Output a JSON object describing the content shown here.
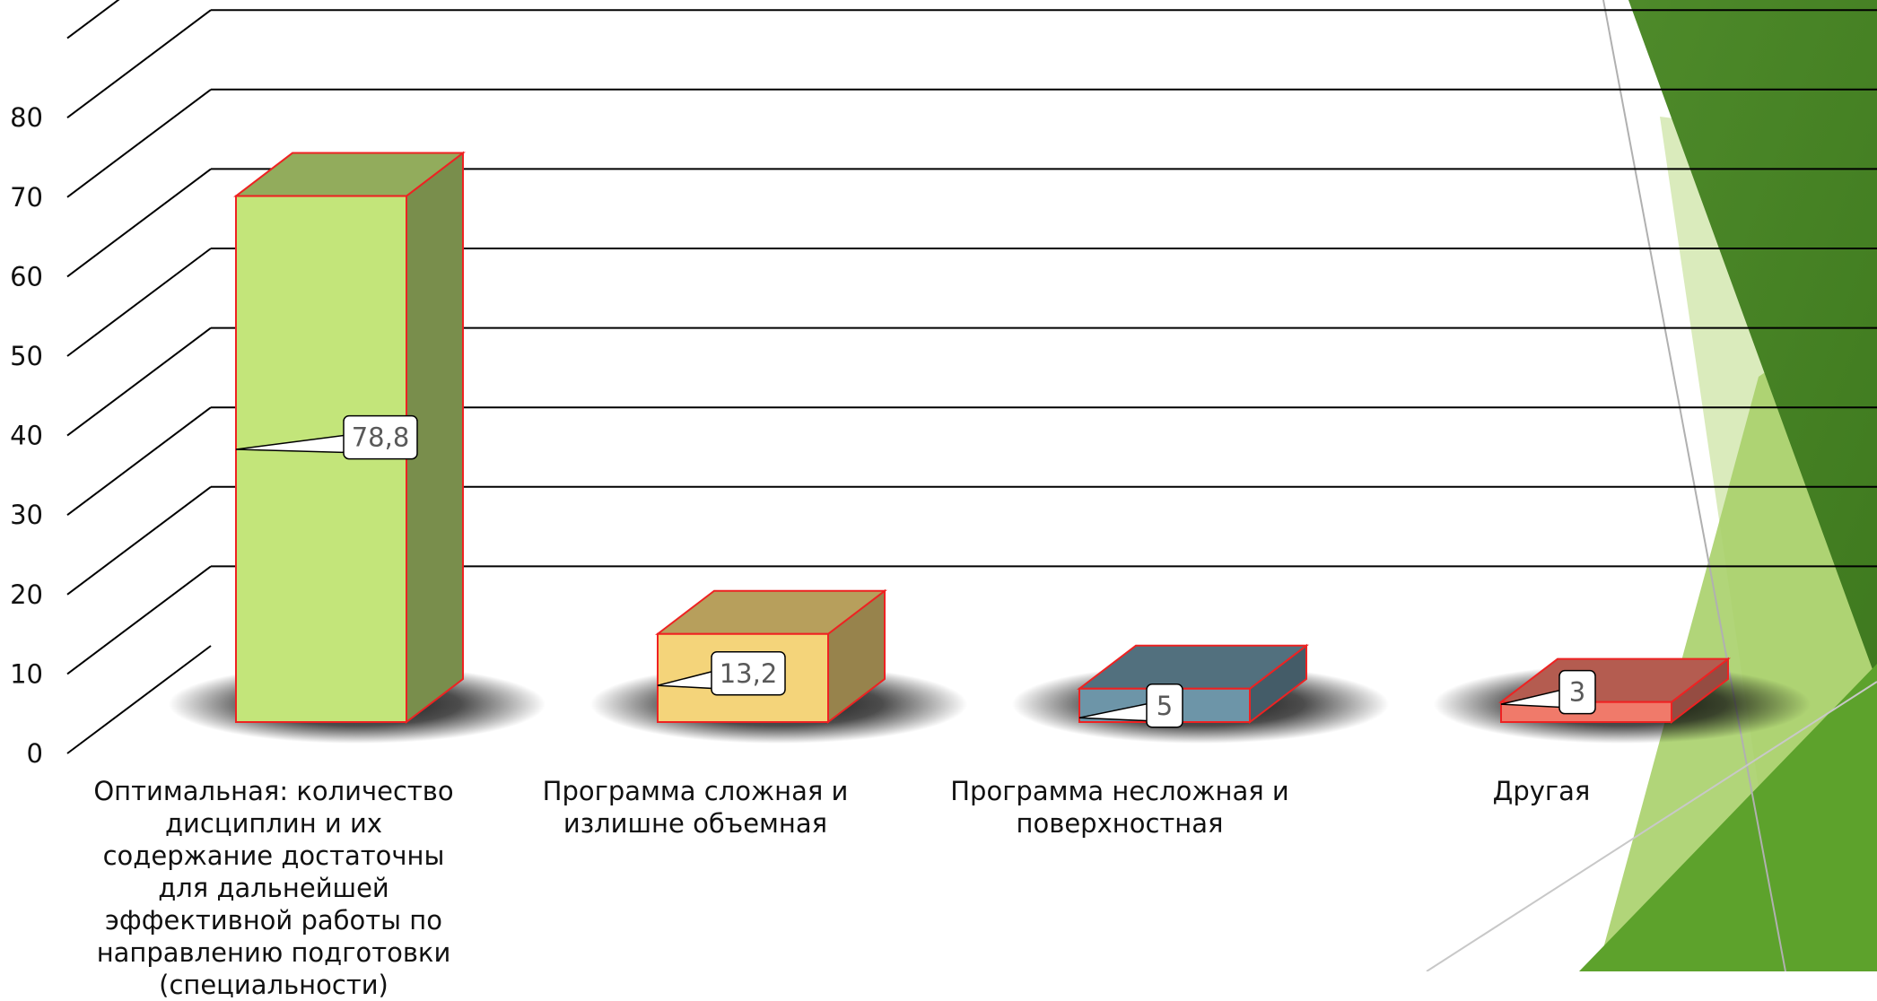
{
  "chart_data": {
    "type": "bar",
    "categories": [
      "Оптимальная: количество дисциплин и их содержание достаточны для дальнейшей эффективной работы по направлению подготовки (специальности)",
      "Программа сложная и излишне объемная",
      "Программа несложная и поверхностная",
      "Другая"
    ],
    "values": [
      78.8,
      13.2,
      5,
      3
    ],
    "data_labels": [
      "78,8",
      "13,2",
      "5",
      "3"
    ],
    "ylim": [
      0,
      90
    ],
    "yticks": [
      "0",
      "10",
      "20",
      "30",
      "40",
      "50",
      "60",
      "70",
      "80"
    ],
    "grid": true,
    "style": "3d-column",
    "colors": [
      "#c3e57a",
      "#f4d47a",
      "#6d95a8",
      "#f07a6a"
    ],
    "outline_color": "#ee2222"
  }
}
